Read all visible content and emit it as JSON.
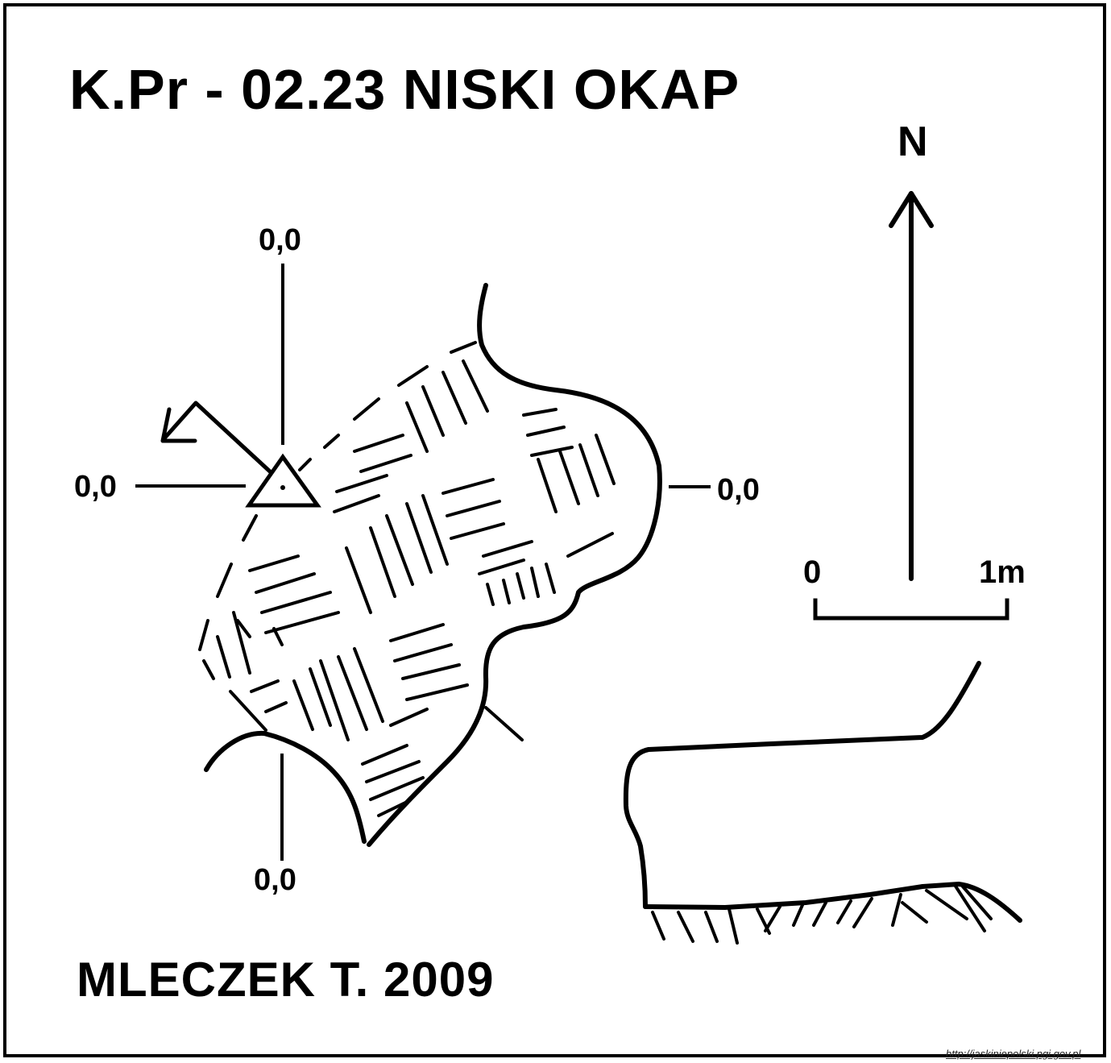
{
  "title": "K.Pr - 02.23  NISKI OKAP",
  "author": "MLECZEK T. 2009",
  "north_label": "N",
  "point_values": {
    "top": "0,0",
    "left": "0,0",
    "right": "0,0",
    "bottom": "0,0"
  },
  "scale_bar": {
    "start_label": "0",
    "end_label": "1m"
  },
  "source_url": "http://jaskiniepolski.pgi.gov.pl",
  "icons": [
    "survey-station-triangle-icon",
    "north-arrow-icon",
    "direction-arrow-icon"
  ],
  "colors": {
    "ink": "#000000",
    "paper": "#ffffff"
  }
}
